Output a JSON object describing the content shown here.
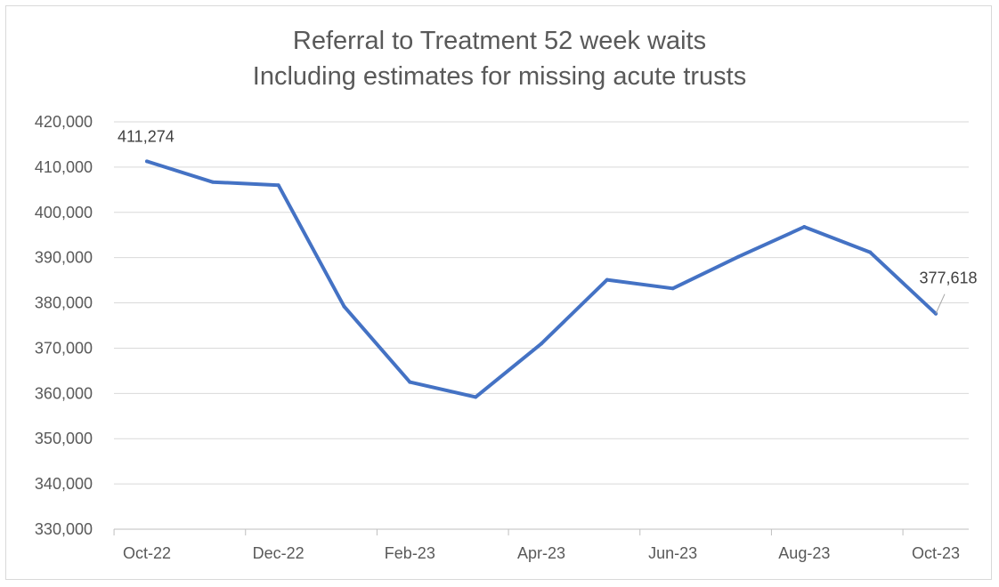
{
  "chart_data": {
    "type": "line",
    "title": "Referral to Treatment 52 week waits",
    "subtitle": "Including estimates for missing acute trusts",
    "xlabel": "",
    "ylabel": "",
    "x": [
      "Oct-22",
      "Nov-22",
      "Dec-22",
      "Jan-23",
      "Feb-23",
      "Mar-23",
      "Apr-23",
      "May-23",
      "Jun-23",
      "Jul-23",
      "Aug-23",
      "Sep-23",
      "Oct-23"
    ],
    "x_tick_labels": [
      "Oct-22",
      "Dec-22",
      "Feb-23",
      "Apr-23",
      "Jun-23",
      "Aug-23",
      "Oct-23"
    ],
    "series": [
      {
        "values": [
          411274,
          406700,
          406000,
          379200,
          362500,
          359200,
          371000,
          385100,
          383200,
          390200,
          396800,
          391200,
          377618
        ],
        "color": "#4472c4"
      }
    ],
    "y_tick_labels": [
      "330,000",
      "340,000",
      "350,000",
      "360,000",
      "370,000",
      "380,000",
      "390,000",
      "400,000",
      "410,000",
      "420,000"
    ],
    "ylim": [
      330000,
      420000
    ],
    "ytick_step": 10000,
    "grid": true,
    "legend": "none",
    "data_labels": [
      {
        "index": 0,
        "text": "411,274"
      },
      {
        "index": 12,
        "text": "377,618"
      }
    ]
  }
}
